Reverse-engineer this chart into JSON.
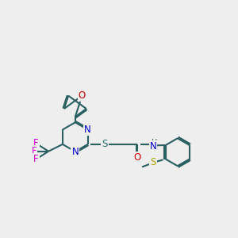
{
  "bg": "#eeeeee",
  "bond_color": "#2a6060",
  "O_color": "#cc0000",
  "N_color": "#0000cc",
  "S1_color": "#2a7070",
  "S2_color": "#aaaa00",
  "F_color": "#cc00cc",
  "H_color": "#2a6060",
  "lw": 1.5,
  "fs": 8.5,
  "xlim": [
    0.0,
    10.5
  ],
  "ylim": [
    3.2,
    9.5
  ]
}
